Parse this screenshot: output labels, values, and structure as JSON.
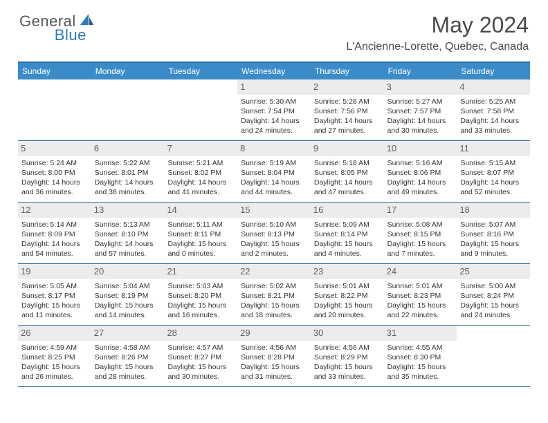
{
  "brand": {
    "part1": "General",
    "part2": "Blue"
  },
  "title": "May 2024",
  "location": "L'Ancienne-Lorette, Quebec, Canada",
  "colors": {
    "header_bg": "#3b8bc9",
    "border": "#2b6ca3",
    "daynum_bg": "#ececec",
    "text": "#333333",
    "brand_blue": "#2b7bbf"
  },
  "weekdays": [
    "Sunday",
    "Monday",
    "Tuesday",
    "Wednesday",
    "Thursday",
    "Friday",
    "Saturday"
  ],
  "weeks": [
    [
      null,
      null,
      null,
      {
        "n": "1",
        "sr": "5:30 AM",
        "ss": "7:54 PM",
        "dl1": "14 hours",
        "dl2": "and 24 minutes."
      },
      {
        "n": "2",
        "sr": "5:28 AM",
        "ss": "7:56 PM",
        "dl1": "14 hours",
        "dl2": "and 27 minutes."
      },
      {
        "n": "3",
        "sr": "5:27 AM",
        "ss": "7:57 PM",
        "dl1": "14 hours",
        "dl2": "and 30 minutes."
      },
      {
        "n": "4",
        "sr": "5:25 AM",
        "ss": "7:58 PM",
        "dl1": "14 hours",
        "dl2": "and 33 minutes."
      }
    ],
    [
      {
        "n": "5",
        "sr": "5:24 AM",
        "ss": "8:00 PM",
        "dl1": "14 hours",
        "dl2": "and 36 minutes."
      },
      {
        "n": "6",
        "sr": "5:22 AM",
        "ss": "8:01 PM",
        "dl1": "14 hours",
        "dl2": "and 38 minutes."
      },
      {
        "n": "7",
        "sr": "5:21 AM",
        "ss": "8:02 PM",
        "dl1": "14 hours",
        "dl2": "and 41 minutes."
      },
      {
        "n": "8",
        "sr": "5:19 AM",
        "ss": "8:04 PM",
        "dl1": "14 hours",
        "dl2": "and 44 minutes."
      },
      {
        "n": "9",
        "sr": "5:18 AM",
        "ss": "8:05 PM",
        "dl1": "14 hours",
        "dl2": "and 47 minutes."
      },
      {
        "n": "10",
        "sr": "5:16 AM",
        "ss": "8:06 PM",
        "dl1": "14 hours",
        "dl2": "and 49 minutes."
      },
      {
        "n": "11",
        "sr": "5:15 AM",
        "ss": "8:07 PM",
        "dl1": "14 hours",
        "dl2": "and 52 minutes."
      }
    ],
    [
      {
        "n": "12",
        "sr": "5:14 AM",
        "ss": "8:09 PM",
        "dl1": "14 hours",
        "dl2": "and 54 minutes."
      },
      {
        "n": "13",
        "sr": "5:13 AM",
        "ss": "8:10 PM",
        "dl1": "14 hours",
        "dl2": "and 57 minutes."
      },
      {
        "n": "14",
        "sr": "5:11 AM",
        "ss": "8:11 PM",
        "dl1": "15 hours",
        "dl2": "and 0 minutes."
      },
      {
        "n": "15",
        "sr": "5:10 AM",
        "ss": "8:13 PM",
        "dl1": "15 hours",
        "dl2": "and 2 minutes."
      },
      {
        "n": "16",
        "sr": "5:09 AM",
        "ss": "8:14 PM",
        "dl1": "15 hours",
        "dl2": "and 4 minutes."
      },
      {
        "n": "17",
        "sr": "5:08 AM",
        "ss": "8:15 PM",
        "dl1": "15 hours",
        "dl2": "and 7 minutes."
      },
      {
        "n": "18",
        "sr": "5:07 AM",
        "ss": "8:16 PM",
        "dl1": "15 hours",
        "dl2": "and 9 minutes."
      }
    ],
    [
      {
        "n": "19",
        "sr": "5:05 AM",
        "ss": "8:17 PM",
        "dl1": "15 hours",
        "dl2": "and 11 minutes."
      },
      {
        "n": "20",
        "sr": "5:04 AM",
        "ss": "8:19 PM",
        "dl1": "15 hours",
        "dl2": "and 14 minutes."
      },
      {
        "n": "21",
        "sr": "5:03 AM",
        "ss": "8:20 PM",
        "dl1": "15 hours",
        "dl2": "and 16 minutes."
      },
      {
        "n": "22",
        "sr": "5:02 AM",
        "ss": "8:21 PM",
        "dl1": "15 hours",
        "dl2": "and 18 minutes."
      },
      {
        "n": "23",
        "sr": "5:01 AM",
        "ss": "8:22 PM",
        "dl1": "15 hours",
        "dl2": "and 20 minutes."
      },
      {
        "n": "24",
        "sr": "5:01 AM",
        "ss": "8:23 PM",
        "dl1": "15 hours",
        "dl2": "and 22 minutes."
      },
      {
        "n": "25",
        "sr": "5:00 AM",
        "ss": "8:24 PM",
        "dl1": "15 hours",
        "dl2": "and 24 minutes."
      }
    ],
    [
      {
        "n": "26",
        "sr": "4:59 AM",
        "ss": "8:25 PM",
        "dl1": "15 hours",
        "dl2": "and 26 minutes."
      },
      {
        "n": "27",
        "sr": "4:58 AM",
        "ss": "8:26 PM",
        "dl1": "15 hours",
        "dl2": "and 28 minutes."
      },
      {
        "n": "28",
        "sr": "4:57 AM",
        "ss": "8:27 PM",
        "dl1": "15 hours",
        "dl2": "and 30 minutes."
      },
      {
        "n": "29",
        "sr": "4:56 AM",
        "ss": "8:28 PM",
        "dl1": "15 hours",
        "dl2": "and 31 minutes."
      },
      {
        "n": "30",
        "sr": "4:56 AM",
        "ss": "8:29 PM",
        "dl1": "15 hours",
        "dl2": "and 33 minutes."
      },
      {
        "n": "31",
        "sr": "4:55 AM",
        "ss": "8:30 PM",
        "dl1": "15 hours",
        "dl2": "and 35 minutes."
      },
      null
    ]
  ]
}
